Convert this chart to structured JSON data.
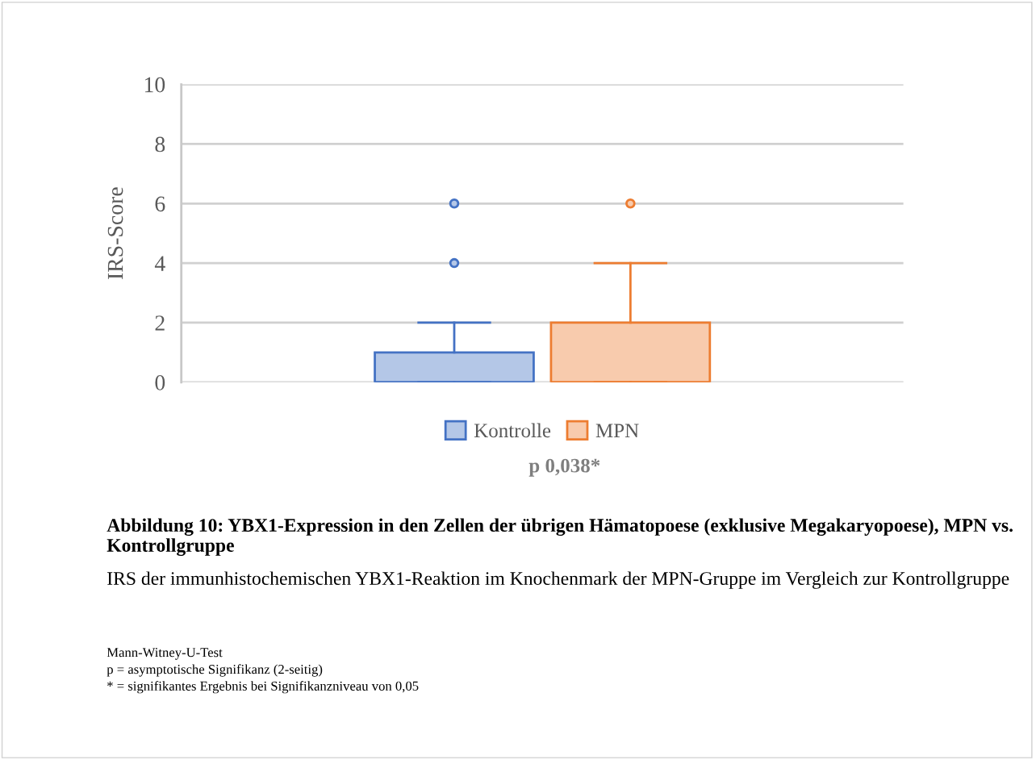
{
  "chart_data": {
    "type": "box",
    "title": "Abbildung 10: YBX1-Expression in den Zellen der übrigen Hämatopoese (exklusive Megakaryopoese), MPN vs. Kontrollgruppe",
    "subtitle": "IRS der immunhistochemischen YBX1-Reaktion im Knochenmark der MPN-Gruppe im Vergleich zur Kontrollgruppe",
    "ylabel": "IRS-Score",
    "categories": [
      null
    ],
    "series": [
      {
        "name": "Kontrolle",
        "color": "#4472c4",
        "boxes": [
          {
            "low": 0,
            "q1": 0,
            "median": 0,
            "q3": 1,
            "high": 2,
            "outliers": [
              4,
              6
            ]
          }
        ]
      },
      {
        "name": "MPN",
        "color": "#ed7d31",
        "boxes": [
          {
            "low": 0,
            "q1": 0,
            "median": 0,
            "q3": 2,
            "high": 4,
            "outliers": [
              6
            ]
          }
        ]
      }
    ],
    "ylim": [
      0,
      10
    ],
    "yticks": [
      0,
      2,
      4,
      6,
      8,
      10
    ],
    "grid": "y",
    "legend": "bottom",
    "annotations": [
      "p 0,038*",
      "Mann-Witney-U-Test",
      "p = asymptotische Signifikanz (2-seitig)",
      "* = signifikantes Ergebnis bei Signifikanzniveau von 0,05"
    ]
  }
}
